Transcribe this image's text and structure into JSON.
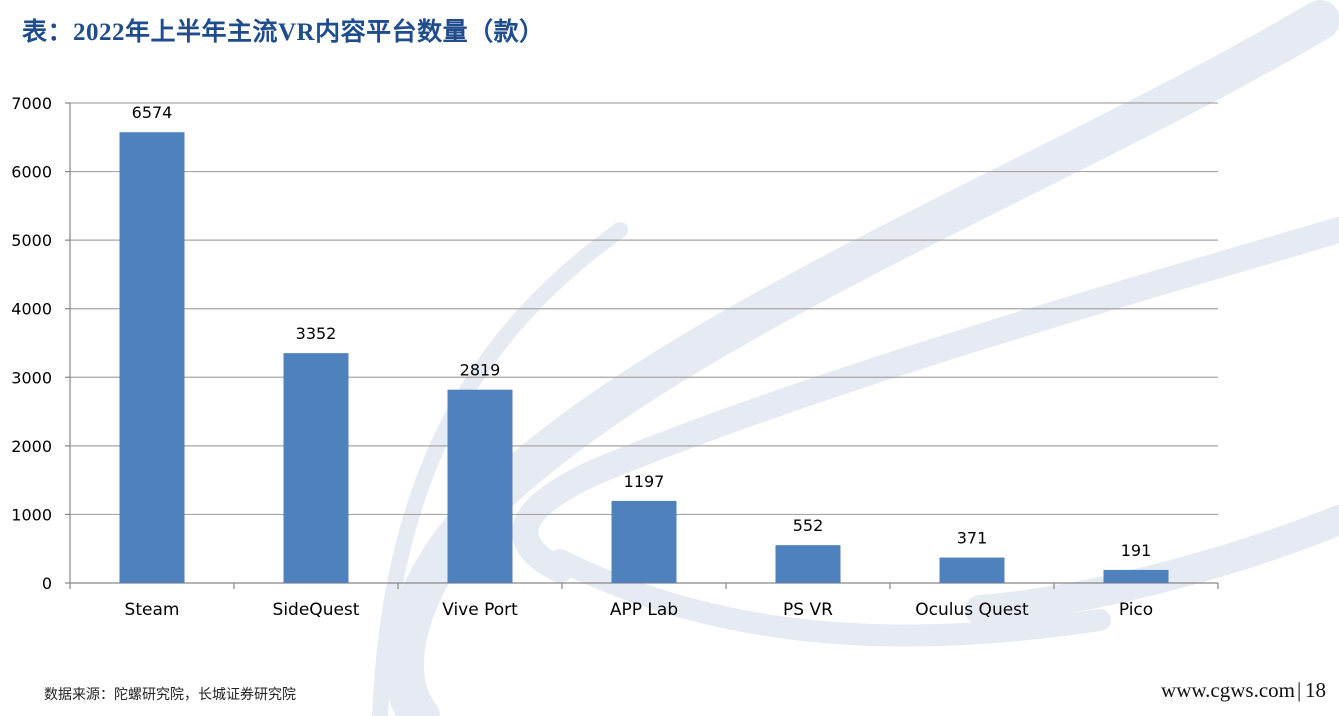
{
  "title": "表：2022年上半年主流VR内容平台数量（款）",
  "source": "数据来源：陀螺研究院，长城证券研究院",
  "footer": {
    "url": "www.cgws.com",
    "separator": "|",
    "page_number": "18"
  },
  "colors": {
    "bar": "#4f81bd",
    "title": "#1e4c8c",
    "grid": "#a6a6a6",
    "axis": "#868686",
    "decor": "#e3e8f1"
  },
  "chart_data": {
    "type": "bar",
    "title": "",
    "xlabel": "",
    "ylabel": "",
    "categories": [
      "Steam",
      "SideQuest",
      "Vive Port",
      "APP Lab",
      "PS VR",
      "Oculus Quest",
      "Pico"
    ],
    "values": [
      6574,
      3352,
      2819,
      1197,
      552,
      371,
      191
    ],
    "ylim": [
      0,
      7000
    ],
    "yticks": [
      0,
      1000,
      2000,
      3000,
      4000,
      5000,
      6000,
      7000
    ],
    "grid": true,
    "legend": "none"
  }
}
